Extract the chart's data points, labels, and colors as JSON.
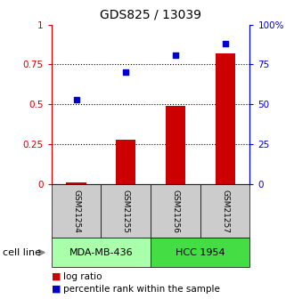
{
  "title": "GDS825 / 13039",
  "samples": [
    "GSM21254",
    "GSM21255",
    "GSM21256",
    "GSM21257"
  ],
  "log_ratio": [
    0.01,
    0.28,
    0.49,
    0.82
  ],
  "percentile_rank": [
    0.53,
    0.7,
    0.81,
    0.88
  ],
  "cell_lines": [
    {
      "label": "MDA-MB-436",
      "samples": [
        0,
        1
      ],
      "color": "#aaffaa"
    },
    {
      "label": "HCC 1954",
      "samples": [
        2,
        3
      ],
      "color": "#44dd44"
    }
  ],
  "bar_color": "#cc0000",
  "dot_color": "#0000cc",
  "left_ylim": [
    0,
    1
  ],
  "right_ylim": [
    0,
    100
  ],
  "left_yticks": [
    0,
    0.25,
    0.5,
    0.75,
    1.0
  ],
  "right_yticks": [
    0,
    25,
    50,
    75,
    100
  ],
  "left_yticklabels": [
    "0",
    "0.25",
    "0.5",
    "0.75",
    "1"
  ],
  "right_yticklabels": [
    "0",
    "25",
    "50",
    "75",
    "100%"
  ],
  "dotted_lines": [
    0.25,
    0.5,
    0.75
  ],
  "legend_log_ratio": "log ratio",
  "legend_percentile": "percentile rank within the sample",
  "cell_line_label": "cell line",
  "background_color": "#ffffff",
  "sample_box_color": "#cccccc",
  "bar_width": 0.4,
  "title_fontsize": 10,
  "tick_fontsize": 7.5,
  "sample_fontsize": 6.5,
  "cell_fontsize": 8,
  "legend_fontsize": 7.5
}
